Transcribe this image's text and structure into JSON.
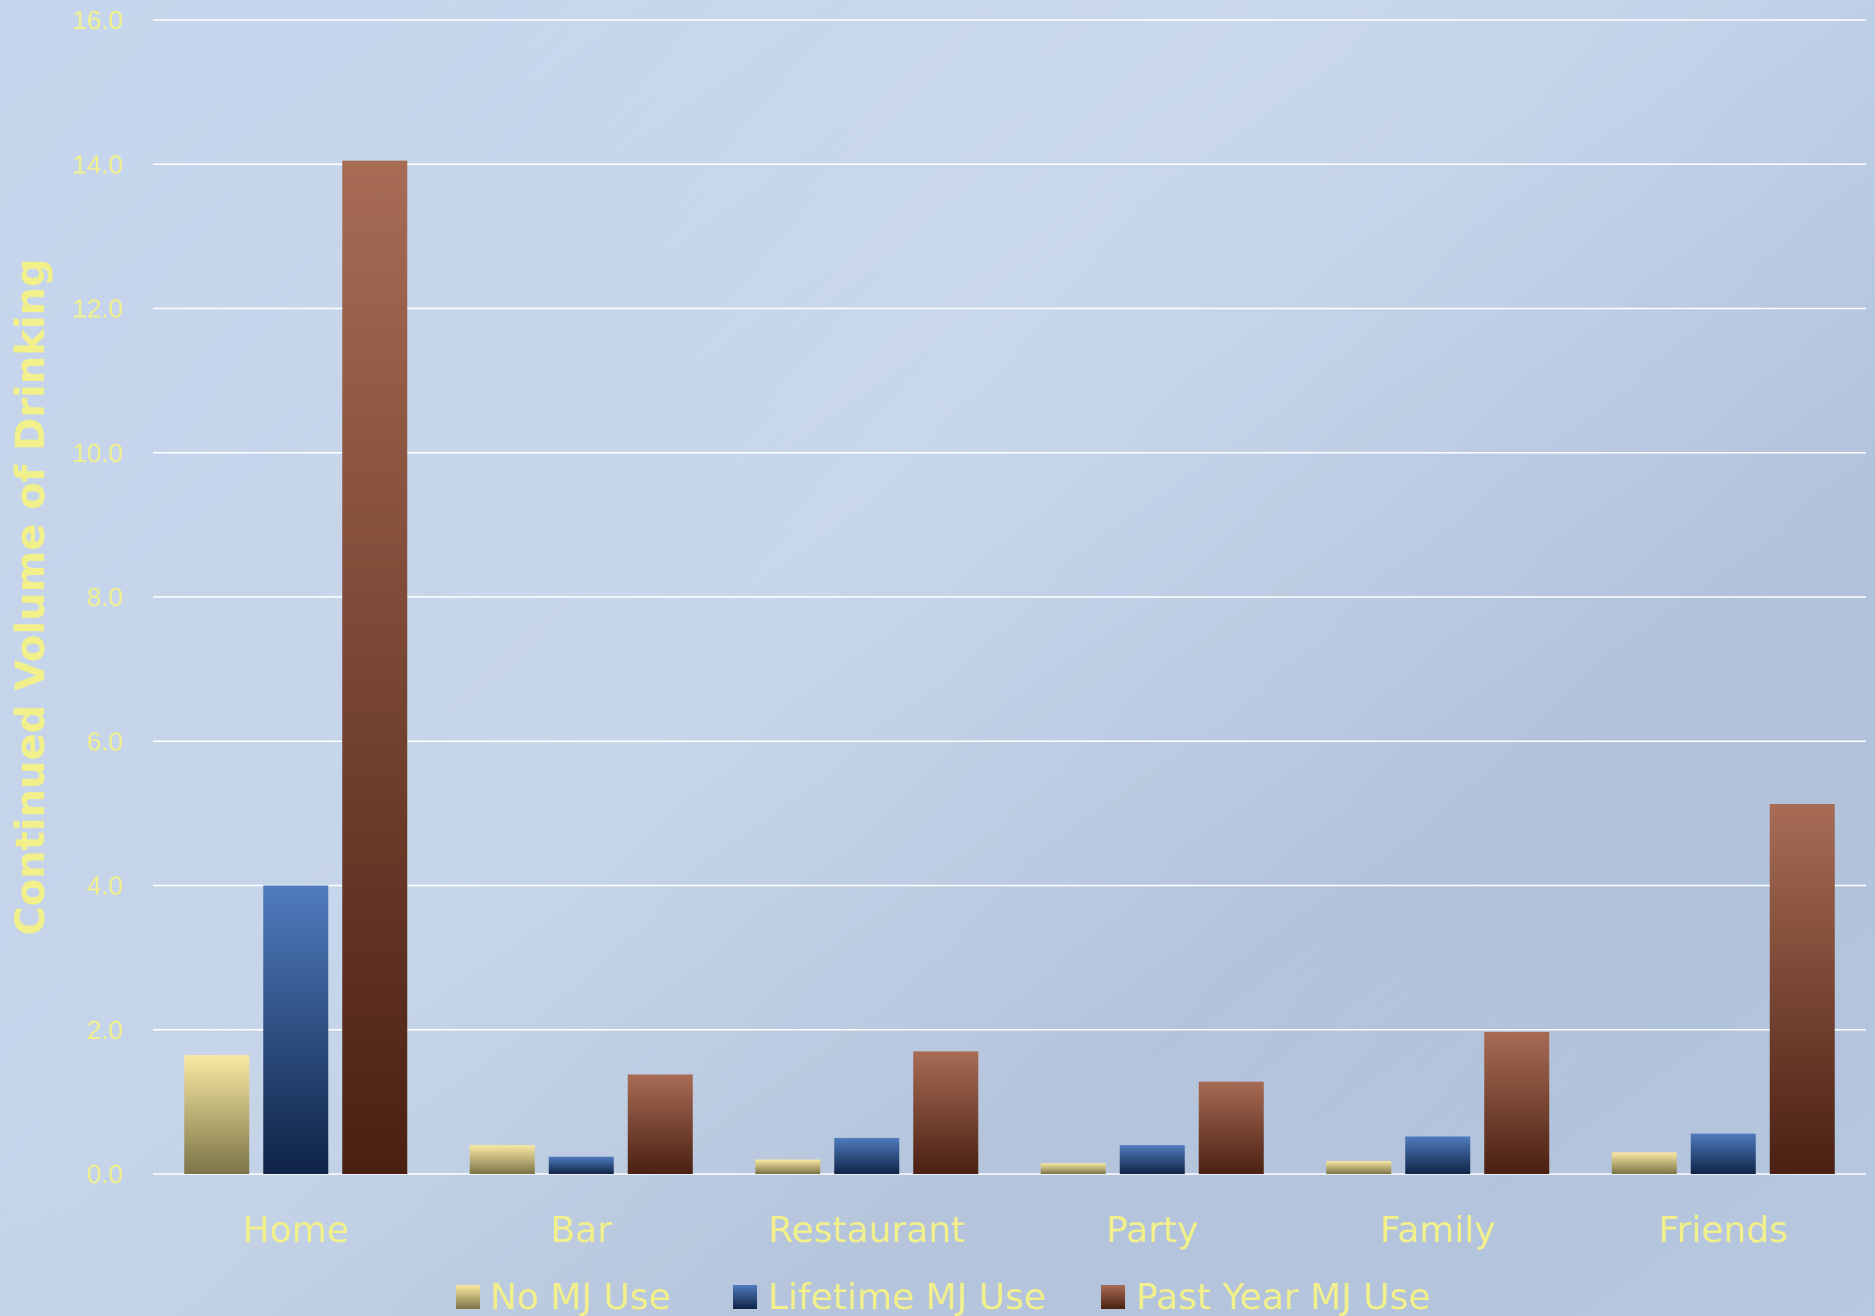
{
  "chart_data": {
    "type": "bar",
    "title": "",
    "xlabel": "",
    "ylabel": "Continued Volume of Drinking",
    "ylim": [
      0,
      16
    ],
    "yticks": [
      "0.0",
      "2.0",
      "4.0",
      "6.0",
      "8.0",
      "10.0",
      "12.0",
      "14.0",
      "16.0"
    ],
    "categories": [
      "Home",
      "Bar",
      "Restaurant",
      "Party",
      "Family",
      "Friends"
    ],
    "series": [
      {
        "name": "No MJ Use",
        "values": [
          1.65,
          0.4,
          0.2,
          0.15,
          0.18,
          0.3
        ]
      },
      {
        "name": "Lifetime MJ Use",
        "values": [
          4.0,
          0.24,
          0.5,
          0.4,
          0.52,
          0.56
        ]
      },
      {
        "name": "Past Year MJ Use",
        "values": [
          14.05,
          1.38,
          1.7,
          1.28,
          1.97,
          5.13
        ]
      }
    ],
    "grid": true,
    "legend_position": "bottom",
    "colors": {
      "series": [
        "#e8d68a",
        "#2e5a92",
        "#8a4a30"
      ],
      "text": "#f2f08a",
      "grid": "#ffffff",
      "background": "#c3d3ea"
    }
  }
}
